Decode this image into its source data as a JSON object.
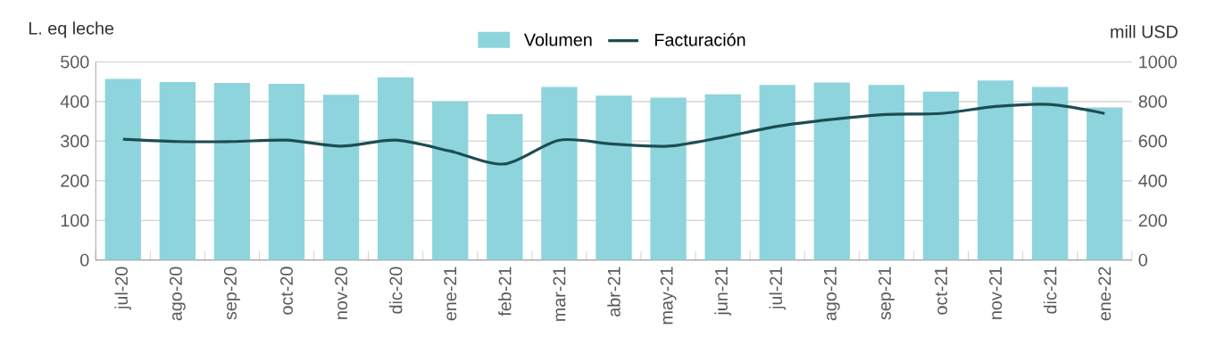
{
  "chart_data": {
    "type": "bar",
    "ylabel": "L. eq leche",
    "y2label": "mill USD",
    "categories": [
      "jul-20",
      "ago-20",
      "sep-20",
      "oct-20",
      "nov-20",
      "dic-20",
      "ene-21",
      "feb-21",
      "mar-21",
      "abr-21",
      "may-21",
      "jun-21",
      "jul-21",
      "ago-21",
      "sep-21",
      "oct-21",
      "nov-21",
      "dic-21",
      "ene-22"
    ],
    "series": [
      {
        "name": "Volumen",
        "type": "bar",
        "color": "#8ed4dc",
        "values": [
          457,
          449,
          447,
          445,
          417,
          461,
          400,
          368,
          437,
          415,
          410,
          418,
          442,
          448,
          442,
          425,
          453,
          437,
          385
        ]
      },
      {
        "name": "Facturación",
        "type": "line",
        "axis": "y2",
        "color": "#1d4d53",
        "line_style": "solid",
        "values": [
          610,
          598,
          598,
          605,
          575,
          605,
          550,
          485,
          605,
          585,
          575,
          620,
          675,
          710,
          735,
          740,
          775,
          785,
          740
        ]
      }
    ],
    "ylim": [
      0,
      500
    ],
    "yticks": [
      0,
      100,
      200,
      300,
      400,
      500
    ],
    "y2lim": [
      0,
      1000
    ],
    "y2ticks": [
      0,
      200,
      400,
      600,
      800,
      1000
    ],
    "grid": "y",
    "legend": "top"
  }
}
